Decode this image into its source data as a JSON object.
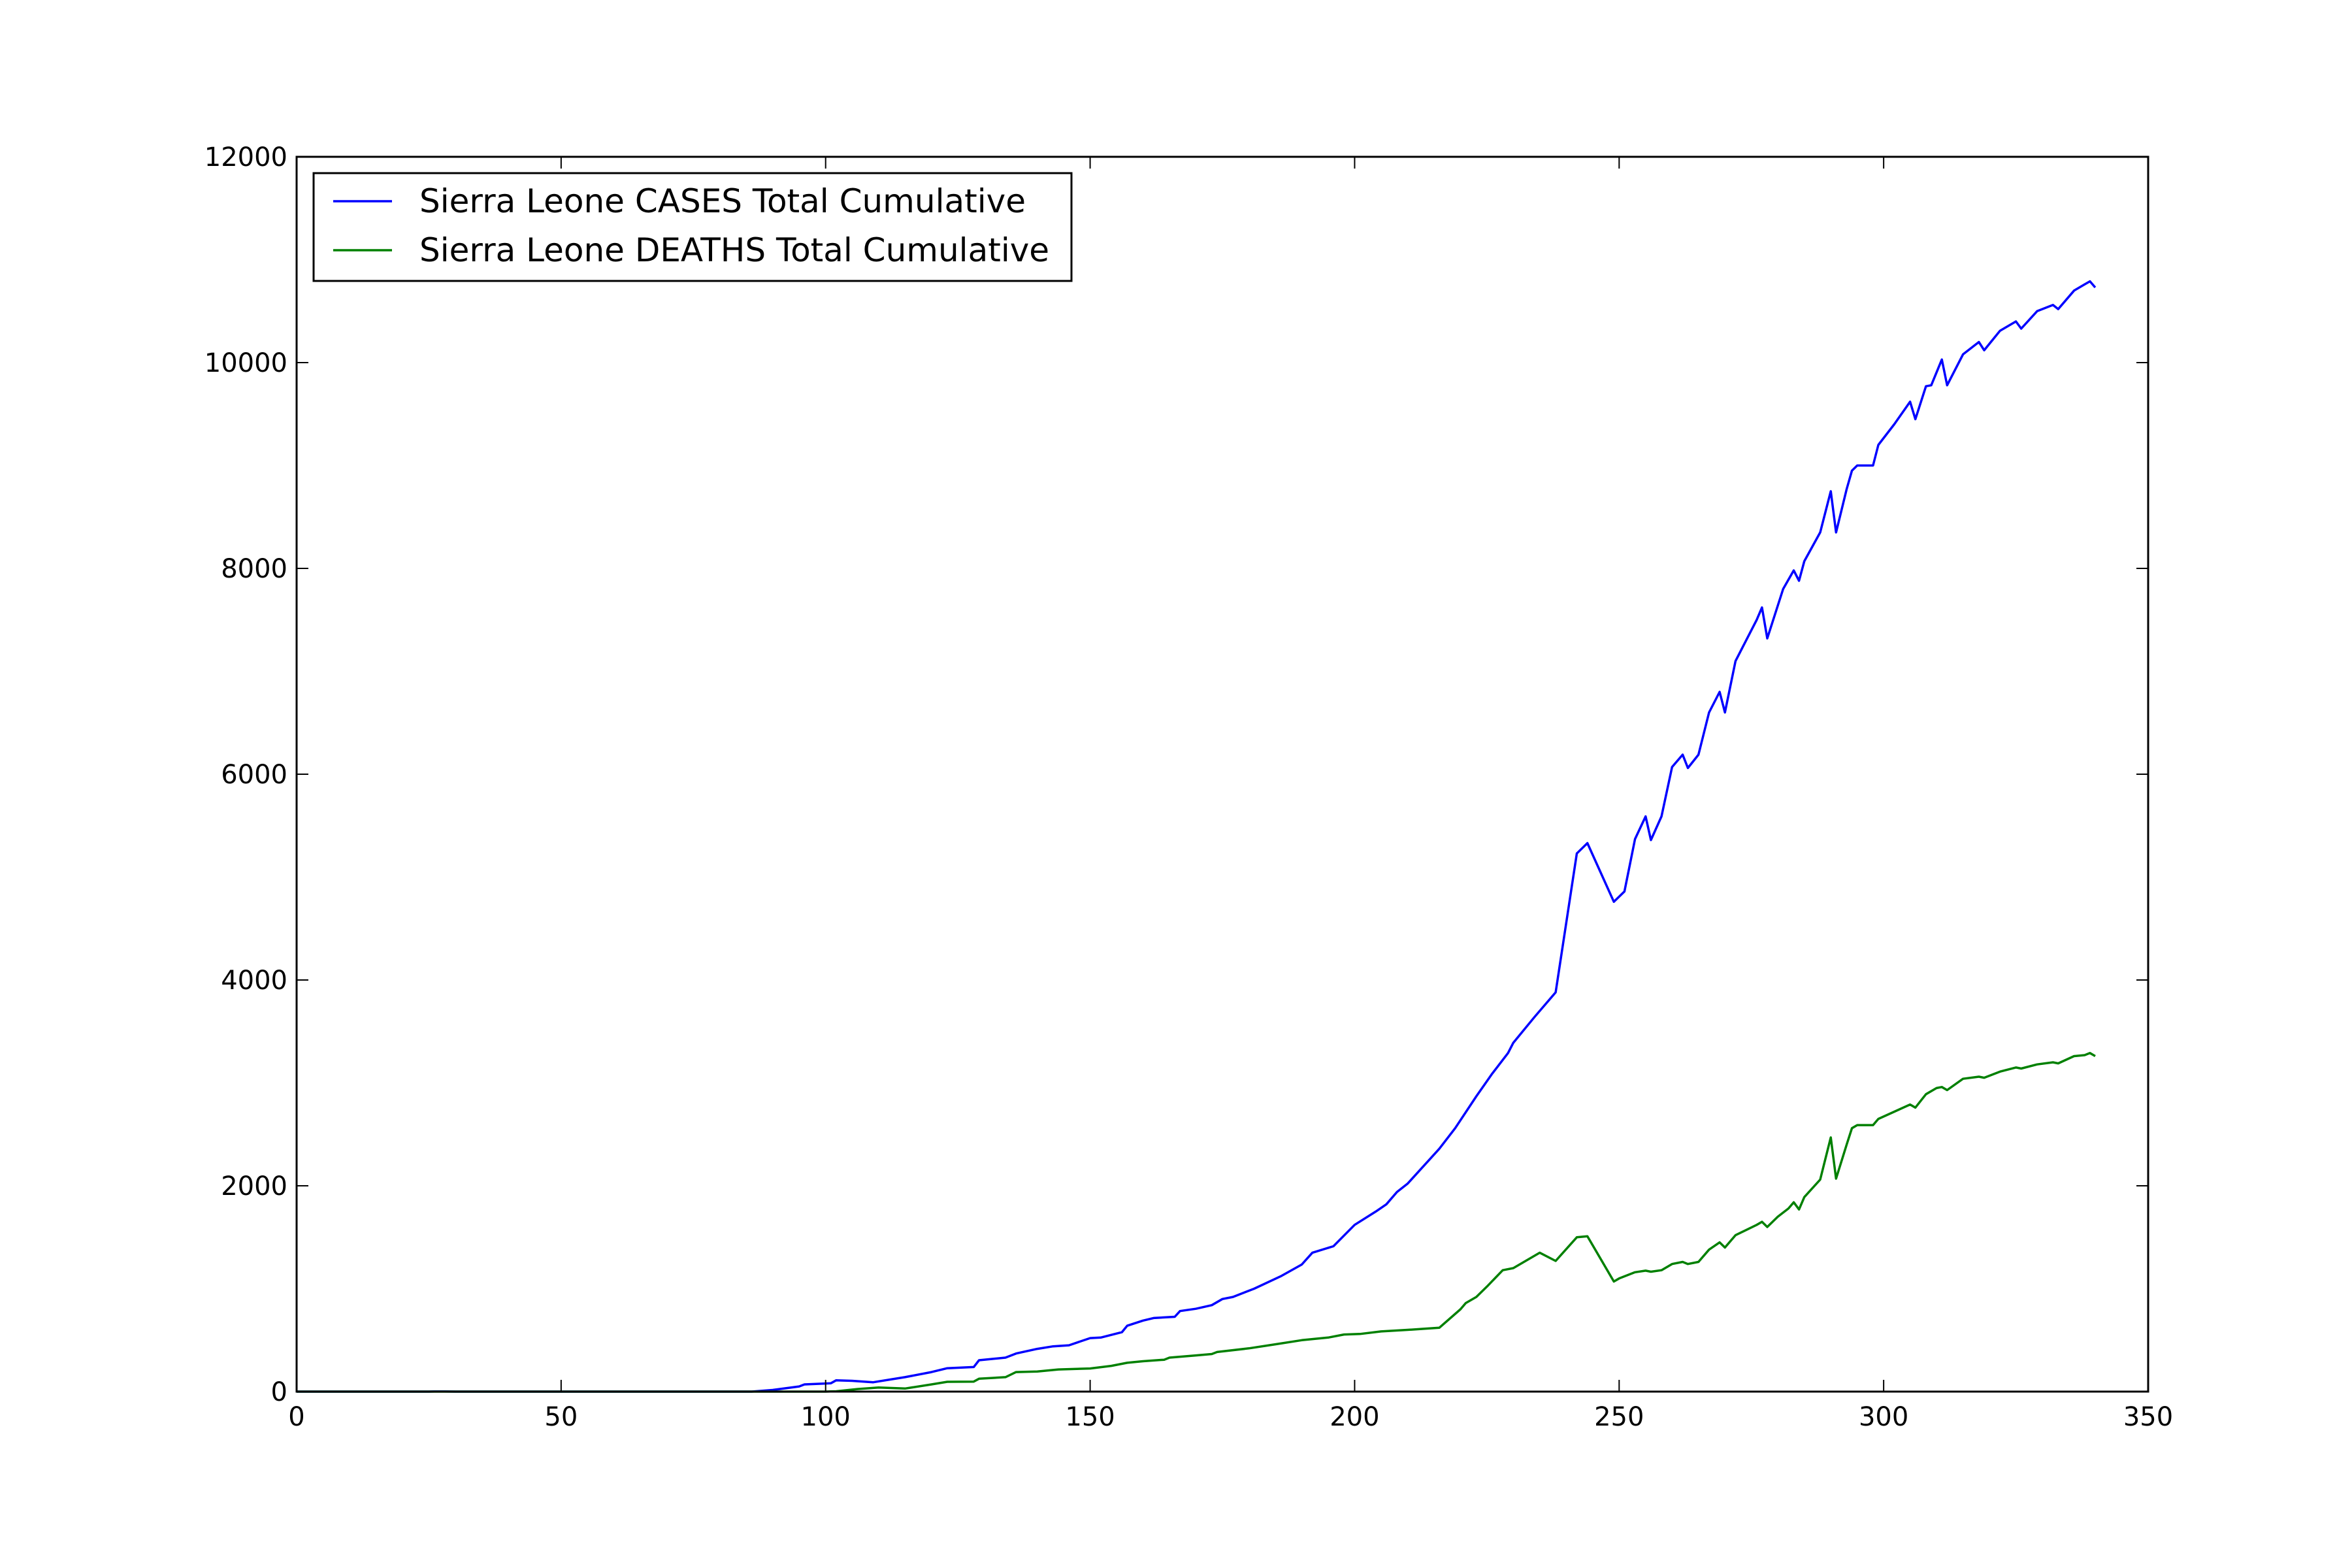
{
  "chart_data": {
    "type": "line",
    "title": "",
    "xlabel": "",
    "ylabel": "",
    "xlim": [
      0,
      350
    ],
    "ylim": [
      0,
      12000
    ],
    "xticks": [
      0,
      50,
      100,
      150,
      200,
      250,
      300,
      350
    ],
    "yticks": [
      0,
      2000,
      4000,
      6000,
      8000,
      10000,
      12000
    ],
    "grid": false,
    "legend_position": "top-left",
    "series": [
      {
        "name": "Sierra Leone CASES Total Cumulative",
        "color": "#0000ff",
        "points": [
          [
            0,
            0
          ],
          [
            25,
            0
          ],
          [
            26,
            2
          ],
          [
            28,
            2
          ],
          [
            30,
            0
          ],
          [
            50,
            0
          ],
          [
            80,
            0
          ],
          [
            86,
            0
          ],
          [
            90,
            16
          ],
          [
            95,
            50
          ],
          [
            96,
            70
          ],
          [
            100,
            79
          ],
          [
            101,
            81
          ],
          [
            102,
            110
          ],
          [
            105,
            105
          ],
          [
            109,
            91
          ],
          [
            115,
            140
          ],
          [
            120,
            190
          ],
          [
            123,
            227
          ],
          [
            128,
            239
          ],
          [
            129,
            305
          ],
          [
            134,
            330
          ],
          [
            136,
            370
          ],
          [
            140,
            415
          ],
          [
            143,
            440
          ],
          [
            146,
            450
          ],
          [
            150,
            520
          ],
          [
            152,
            525
          ],
          [
            156,
            577
          ],
          [
            157,
            640
          ],
          [
            160,
            690
          ],
          [
            162,
            715
          ],
          [
            166,
            727
          ],
          [
            167,
            783
          ],
          [
            170,
            805
          ],
          [
            173,
            840
          ],
          [
            175,
            900
          ],
          [
            177,
            920
          ],
          [
            181,
            1000
          ],
          [
            186,
            1120
          ],
          [
            190,
            1235
          ],
          [
            192,
            1350
          ],
          [
            196,
            1413
          ],
          [
            200,
            1620
          ],
          [
            204,
            1750
          ],
          [
            206,
            1820
          ],
          [
            208,
            1940
          ],
          [
            210,
            2020
          ],
          [
            213,
            2190
          ],
          [
            216,
            2360
          ],
          [
            219,
            2560
          ],
          [
            223,
            2870
          ],
          [
            226,
            3090
          ],
          [
            229,
            3290
          ],
          [
            230,
            3390
          ],
          [
            234,
            3640
          ],
          [
            238,
            3880
          ],
          [
            242,
            5230
          ],
          [
            244,
            5330
          ],
          [
            249,
            4760
          ],
          [
            251,
            4860
          ],
          [
            253,
            5370
          ],
          [
            255,
            5590
          ],
          [
            256,
            5360
          ],
          [
            258,
            5590
          ],
          [
            260,
            6070
          ],
          [
            262,
            6190
          ],
          [
            263,
            6060
          ],
          [
            265,
            6190
          ],
          [
            267,
            6600
          ],
          [
            269,
            6800
          ],
          [
            270,
            6600
          ],
          [
            272,
            7100
          ],
          [
            276,
            7500
          ],
          [
            277,
            7620
          ],
          [
            278,
            7320
          ],
          [
            281,
            7800
          ],
          [
            283,
            7980
          ],
          [
            284,
            7880
          ],
          [
            285,
            8070
          ],
          [
            288,
            8350
          ],
          [
            290,
            8750
          ],
          [
            291,
            8350
          ],
          [
            293,
            8770
          ],
          [
            294,
            8950
          ],
          [
            295,
            9000
          ],
          [
            298,
            9000
          ],
          [
            299,
            9200
          ],
          [
            302,
            9400
          ],
          [
            305,
            9620
          ],
          [
            306,
            9450
          ],
          [
            308,
            9770
          ],
          [
            309,
            9780
          ],
          [
            311,
            10030
          ],
          [
            312,
            9780
          ],
          [
            315,
            10080
          ],
          [
            318,
            10200
          ],
          [
            319,
            10120
          ],
          [
            322,
            10310
          ],
          [
            325,
            10400
          ],
          [
            326,
            10330
          ],
          [
            329,
            10500
          ],
          [
            332,
            10560
          ],
          [
            333,
            10520
          ],
          [
            336,
            10700
          ],
          [
            338,
            10760
          ],
          [
            339,
            10790
          ],
          [
            340,
            10730
          ]
        ]
      },
      {
        "name": "Sierra Leone DEATHS Total Cumulative",
        "color": "#008000",
        "points": [
          [
            0,
            0
          ],
          [
            95,
            0
          ],
          [
            100,
            0
          ],
          [
            102,
            3
          ],
          [
            106,
            25
          ],
          [
            110,
            40
          ],
          [
            115,
            30
          ],
          [
            120,
            70
          ],
          [
            123,
            95
          ],
          [
            128,
            97
          ],
          [
            129,
            125
          ],
          [
            134,
            140
          ],
          [
            136,
            190
          ],
          [
            140,
            195
          ],
          [
            144,
            215
          ],
          [
            150,
            225
          ],
          [
            154,
            250
          ],
          [
            157,
            280
          ],
          [
            160,
            295
          ],
          [
            164,
            310
          ],
          [
            165,
            330
          ],
          [
            170,
            352
          ],
          [
            173,
            365
          ],
          [
            174,
            385
          ],
          [
            180,
            420
          ],
          [
            185,
            460
          ],
          [
            190,
            500
          ],
          [
            195,
            525
          ],
          [
            198,
            555
          ],
          [
            201,
            560
          ],
          [
            205,
            585
          ],
          [
            210,
            600
          ],
          [
            216,
            620
          ],
          [
            220,
            800
          ],
          [
            221,
            860
          ],
          [
            223,
            920
          ],
          [
            225,
            1020
          ],
          [
            228,
            1180
          ],
          [
            230,
            1200
          ],
          [
            235,
            1350
          ],
          [
            238,
            1270
          ],
          [
            242,
            1500
          ],
          [
            244,
            1510
          ],
          [
            249,
            1070
          ],
          [
            250,
            1100
          ],
          [
            253,
            1160
          ],
          [
            255,
            1175
          ],
          [
            256,
            1165
          ],
          [
            258,
            1180
          ],
          [
            260,
            1240
          ],
          [
            262,
            1260
          ],
          [
            263,
            1240
          ],
          [
            265,
            1260
          ],
          [
            267,
            1380
          ],
          [
            269,
            1450
          ],
          [
            270,
            1400
          ],
          [
            272,
            1520
          ],
          [
            276,
            1620
          ],
          [
            277,
            1650
          ],
          [
            278,
            1600
          ],
          [
            280,
            1700
          ],
          [
            282,
            1780
          ],
          [
            283,
            1840
          ],
          [
            284,
            1770
          ],
          [
            285,
            1890
          ],
          [
            288,
            2060
          ],
          [
            290,
            2470
          ],
          [
            291,
            2070
          ],
          [
            293,
            2400
          ],
          [
            294,
            2560
          ],
          [
            295,
            2590
          ],
          [
            298,
            2590
          ],
          [
            299,
            2650
          ],
          [
            302,
            2720
          ],
          [
            305,
            2790
          ],
          [
            306,
            2760
          ],
          [
            308,
            2890
          ],
          [
            310,
            2950
          ],
          [
            311,
            2960
          ],
          [
            312,
            2930
          ],
          [
            315,
            3040
          ],
          [
            318,
            3060
          ],
          [
            319,
            3050
          ],
          [
            322,
            3110
          ],
          [
            325,
            3150
          ],
          [
            326,
            3140
          ],
          [
            329,
            3180
          ],
          [
            332,
            3200
          ],
          [
            333,
            3190
          ],
          [
            336,
            3260
          ],
          [
            338,
            3270
          ],
          [
            339,
            3290
          ],
          [
            340,
            3260
          ]
        ]
      }
    ]
  }
}
